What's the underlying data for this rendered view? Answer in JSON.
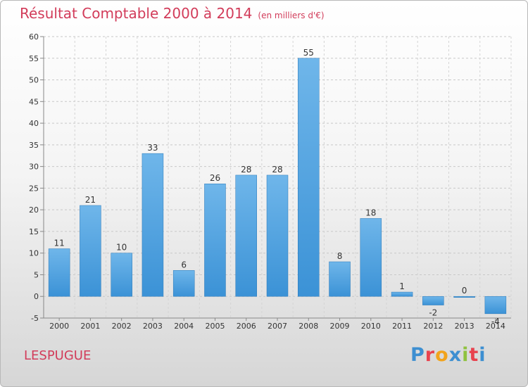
{
  "header": {
    "title": "Résultat Comptable 2000 à 2014",
    "subtitle": "(en milliers d'€)"
  },
  "footer": {
    "commune": "LESPUGUE",
    "logo_letters": [
      "P",
      "r",
      "o",
      "x",
      "i",
      "t",
      "i"
    ],
    "logo_colors": [
      "#3d8fd1",
      "#e8424e",
      "#f2a31b",
      "#3d8fd1",
      "#8fc23f",
      "#e8424e",
      "#3d8fd1"
    ]
  },
  "chart_data": {
    "type": "bar",
    "title": "Résultat Comptable 2000 à 2014",
    "subtitle": "(en milliers d'€)",
    "categories": [
      "2000",
      "2001",
      "2002",
      "2003",
      "2004",
      "2005",
      "2006",
      "2007",
      "2008",
      "2009",
      "2010",
      "2011",
      "2012",
      "2013",
      "2014"
    ],
    "values": [
      11,
      21,
      10,
      33,
      6,
      26,
      28,
      28,
      55,
      8,
      18,
      1,
      -2,
      0,
      -4
    ],
    "value_labels": [
      "11",
      "21",
      "10",
      "33",
      "6",
      "26",
      "28",
      "28",
      "55",
      "8",
      "18",
      "1",
      "-2",
      "0",
      "-4"
    ],
    "ylim": [
      -5,
      60
    ],
    "yticks": [
      -5,
      0,
      5,
      10,
      15,
      20,
      25,
      30,
      35,
      40,
      45,
      50,
      55,
      60
    ],
    "grid": true,
    "bar_color": "#3b92d6",
    "bar_color_light": "#6fb6ea"
  }
}
